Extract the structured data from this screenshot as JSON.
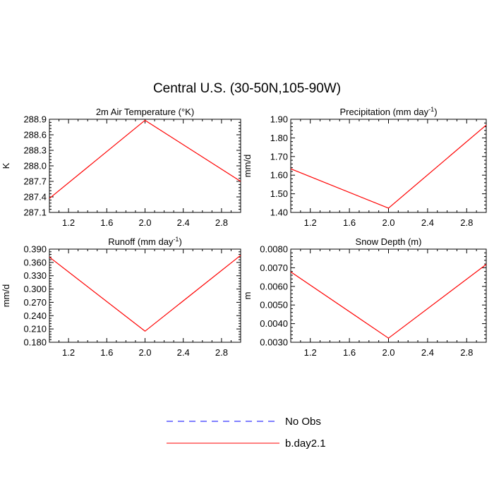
{
  "figure": {
    "title": "Central U.S. (30-50N,105-90W)"
  },
  "legend": [
    {
      "label": "No Obs",
      "color": "#0000ff",
      "dashed": true
    },
    {
      "label": "b.day2.1",
      "color": "#ff0000",
      "dashed": false
    }
  ],
  "chart_data": [
    {
      "type": "line",
      "title": "2m Air Temperature (°K)",
      "ylabel": "K",
      "xlim": [
        1,
        3
      ],
      "ylim": [
        287.1,
        288.9
      ],
      "x_ticks": [
        "1.2",
        "1.6",
        "2.0",
        "2.4",
        "2.8"
      ],
      "y_ticks": [
        "287.1",
        "287.4",
        "287.7",
        "288.0",
        "288.3",
        "288.6",
        "288.9"
      ],
      "series": [
        {
          "name": "b.day2.1",
          "x": [
            1,
            2,
            3
          ],
          "y": [
            287.37,
            288.88,
            287.7
          ]
        }
      ]
    },
    {
      "type": "line",
      "title": "Precipitation (mm day-1)",
      "ylabel": "mm/d",
      "xlim": [
        1,
        3
      ],
      "ylim": [
        1.4,
        1.9
      ],
      "x_ticks": [
        "1.2",
        "1.6",
        "2.0",
        "2.4",
        "2.8"
      ],
      "y_ticks": [
        "1.40",
        "1.50",
        "1.60",
        "1.70",
        "1.80",
        "1.90"
      ],
      "series": [
        {
          "name": "b.day2.1",
          "x": [
            1,
            2,
            3
          ],
          "y": [
            1.634,
            1.423,
            1.869
          ]
        }
      ]
    },
    {
      "type": "line",
      "title": "Runoff (mm day-1)",
      "ylabel": "mm/d",
      "xlim": [
        1,
        3
      ],
      "ylim": [
        0.18,
        0.39
      ],
      "x_ticks": [
        "1.2",
        "1.6",
        "2.0",
        "2.4",
        "2.8"
      ],
      "y_ticks": [
        "0.180",
        "0.210",
        "0.240",
        "0.270",
        "0.300",
        "0.330",
        "0.360",
        "0.390"
      ],
      "series": [
        {
          "name": "b.day2.1",
          "x": [
            1,
            2,
            3
          ],
          "y": [
            0.372,
            0.205,
            0.376
          ]
        }
      ]
    },
    {
      "type": "line",
      "title": "Snow Depth (m)",
      "ylabel": "m",
      "xlim": [
        1,
        3
      ],
      "ylim": [
        0.003,
        0.008
      ],
      "x_ticks": [
        "1.2",
        "1.6",
        "2.0",
        "2.4",
        "2.8"
      ],
      "y_ticks": [
        "0.0030",
        "0.0040",
        "0.0050",
        "0.0060",
        "0.0070",
        "0.0080"
      ],
      "series": [
        {
          "name": "b.day2.1",
          "x": [
            1,
            2,
            3
          ],
          "y": [
            0.00678,
            0.00322,
            0.00718
          ]
        }
      ]
    }
  ]
}
